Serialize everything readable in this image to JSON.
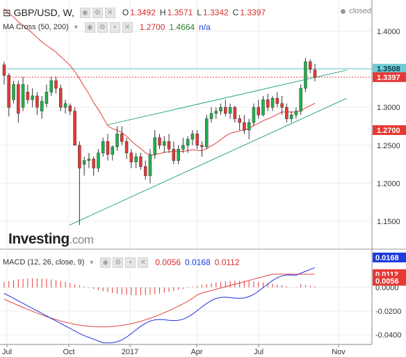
{
  "header": {
    "symbol": "GBP/USD, W,",
    "o_label": "O",
    "open": "1.3492",
    "h_label": "H",
    "high": "1.3571",
    "l_label": "L",
    "low": "1.3342",
    "c_label": "C",
    "close": "1.3397",
    "status": "closed"
  },
  "ma_legend": {
    "label": "MA Cross (50, 200)",
    "v1": "1.2700",
    "v2": "1.4664",
    "v3": "n/a"
  },
  "macd_legend": {
    "label": "MACD (12, 26, close, 9)",
    "v1": "0.0056",
    "v2": "0.0168",
    "v3": "0.0112"
  },
  "logo": {
    "main": "Investing",
    "suffix": ".com"
  },
  "colors": {
    "up": "#22b14c",
    "down": "#e53935",
    "ma50": "#e04040",
    "macd": "#2030e0",
    "signal": "#e04040",
    "trendline": "#2aa58a",
    "resistance": "#6fcbd5",
    "grid": "#ebebeb"
  },
  "chart_data": [
    {
      "type": "candlestick",
      "title": "GBP/USD, W",
      "x_tick_labels": [
        "Jul",
        "Oct",
        "2017",
        "Apr",
        "Jul",
        "Nov"
      ],
      "y_tick_labels": [
        "1.4000",
        "1.3500",
        "1.3000",
        "1.2500",
        "1.2000",
        "1.1500"
      ],
      "ylim": [
        1.12,
        1.42
      ],
      "price_labels": [
        {
          "text": "1.3508",
          "value": 1.3508,
          "color": "#6fcbd5"
        },
        {
          "text": "1.3397",
          "value": 1.3397,
          "color": "#e53935"
        },
        {
          "text": "1.2700",
          "value": 1.27,
          "color": "#e53935"
        }
      ],
      "candles": [
        [
          1.356,
          1.36,
          1.33,
          1.342
        ],
        [
          1.342,
          1.345,
          1.288,
          1.3
        ],
        [
          1.31,
          1.335,
          1.305,
          1.33
        ],
        [
          1.33,
          1.335,
          1.28,
          1.292
        ],
        [
          1.3,
          1.34,
          1.295,
          1.33
        ],
        [
          1.32,
          1.33,
          1.305,
          1.31
        ],
        [
          1.31,
          1.325,
          1.3,
          1.315
        ],
        [
          1.315,
          1.32,
          1.29,
          1.3
        ],
        [
          1.295,
          1.315,
          1.285,
          1.308
        ],
        [
          1.305,
          1.33,
          1.3,
          1.32
        ],
        [
          1.32,
          1.34,
          1.315,
          1.335
        ],
        [
          1.335,
          1.34,
          1.318,
          1.325
        ],
        [
          1.325,
          1.33,
          1.295,
          1.3
        ],
        [
          1.3,
          1.31,
          1.292,
          1.305
        ],
        [
          1.302,
          1.305,
          1.29,
          1.295
        ],
        [
          1.295,
          1.3,
          1.25,
          1.25
        ],
        [
          1.25,
          1.255,
          1.145,
          1.22
        ],
        [
          1.225,
          1.235,
          1.21,
          1.23
        ],
        [
          1.23,
          1.24,
          1.22,
          1.232
        ],
        [
          1.232,
          1.235,
          1.21,
          1.22
        ],
        [
          1.22,
          1.245,
          1.215,
          1.24
        ],
        [
          1.24,
          1.26,
          1.235,
          1.255
        ],
        [
          1.255,
          1.265,
          1.23,
          1.238
        ],
        [
          1.238,
          1.25,
          1.23,
          1.248
        ],
        [
          1.248,
          1.275,
          1.243,
          1.265
        ],
        [
          1.265,
          1.275,
          1.25,
          1.255
        ],
        [
          1.255,
          1.26,
          1.232,
          1.24
        ],
        [
          1.24,
          1.245,
          1.22,
          1.228
        ],
        [
          1.228,
          1.24,
          1.22,
          1.235
        ],
        [
          1.235,
          1.24,
          1.218,
          1.222
        ],
        [
          1.222,
          1.23,
          1.205,
          1.21
        ],
        [
          1.21,
          1.245,
          1.2,
          1.238
        ],
        [
          1.238,
          1.27,
          1.232,
          1.26
        ],
        [
          1.26,
          1.265,
          1.245,
          1.25
        ],
        [
          1.25,
          1.262,
          1.24,
          1.255
        ],
        [
          1.255,
          1.265,
          1.24,
          1.245
        ],
        [
          1.245,
          1.255,
          1.225,
          1.23
        ],
        [
          1.23,
          1.25,
          1.225,
          1.245
        ],
        [
          1.245,
          1.26,
          1.24,
          1.25
        ],
        [
          1.25,
          1.262,
          1.24,
          1.258
        ],
        [
          1.258,
          1.27,
          1.25,
          1.265
        ],
        [
          1.265,
          1.27,
          1.245,
          1.25
        ],
        [
          1.25,
          1.255,
          1.235,
          1.248
        ],
        [
          1.248,
          1.29,
          1.245,
          1.285
        ],
        [
          1.285,
          1.3,
          1.28,
          1.292
        ],
        [
          1.292,
          1.3,
          1.285,
          1.295
        ],
        [
          1.295,
          1.305,
          1.29,
          1.3
        ],
        [
          1.3,
          1.31,
          1.288,
          1.292
        ],
        [
          1.292,
          1.305,
          1.285,
          1.3
        ],
        [
          1.3,
          1.302,
          1.28,
          1.285
        ],
        [
          1.285,
          1.29,
          1.27,
          1.28
        ],
        [
          1.28,
          1.29,
          1.265,
          1.27
        ],
        [
          1.27,
          1.285,
          1.258,
          1.28
        ],
        [
          1.28,
          1.305,
          1.275,
          1.3
        ],
        [
          1.3,
          1.31,
          1.285,
          1.29
        ],
        [
          1.29,
          1.315,
          1.288,
          1.31
        ],
        [
          1.31,
          1.318,
          1.295,
          1.3
        ],
        [
          1.3,
          1.315,
          1.295,
          1.312
        ],
        [
          1.312,
          1.32,
          1.3,
          1.305
        ],
        [
          1.305,
          1.315,
          1.29,
          1.3
        ],
        [
          1.3,
          1.305,
          1.28,
          1.285
        ],
        [
          1.285,
          1.295,
          1.28,
          1.29
        ],
        [
          1.29,
          1.3,
          1.285,
          1.295
        ],
        [
          1.295,
          1.33,
          1.29,
          1.325
        ],
        [
          1.325,
          1.365,
          1.32,
          1.36
        ],
        [
          1.36,
          1.363,
          1.345,
          1.35
        ],
        [
          1.3492,
          1.3571,
          1.3342,
          1.3397
        ]
      ]
    },
    {
      "type": "line",
      "title": "MACD (12, 26, close, 9)",
      "y_tick_labels": [
        "0.0000",
        "-0.0200",
        "-0.0400"
      ],
      "ylim": [
        -0.048,
        0.024
      ],
      "price_labels": [
        {
          "text": "0.0168",
          "value": 0.0168,
          "color": "#1e3ddb"
        },
        {
          "text": "0.0112",
          "value": 0.0112,
          "color": "#e53935"
        },
        {
          "text": "0.0056",
          "value": 0.0056,
          "color": "#e53935"
        }
      ]
    }
  ]
}
